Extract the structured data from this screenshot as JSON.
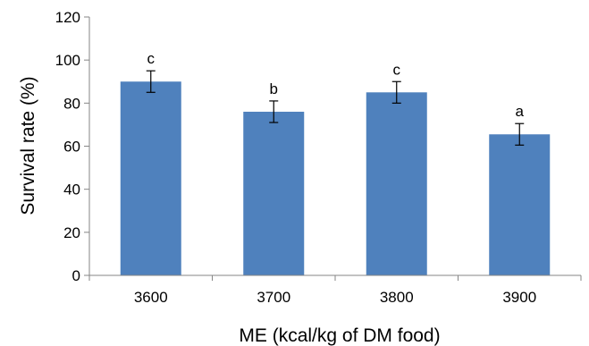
{
  "chart_data": {
    "type": "bar",
    "title": "",
    "xlabel": "ME (kcal/kg of DM food)",
    "ylabel": "Survival rate (%)",
    "ylim": [
      0,
      120
    ],
    "yticks": [
      0,
      20,
      40,
      60,
      80,
      100,
      120
    ],
    "categories": [
      "3600",
      "3700",
      "3800",
      "3900"
    ],
    "values": [
      90,
      76,
      85,
      65.5
    ],
    "error": [
      5,
      5,
      5,
      5
    ],
    "significance_labels": [
      "c",
      "b",
      "c",
      "a"
    ],
    "grid": false,
    "legend": "none",
    "bar_color": "#4f81bd"
  }
}
